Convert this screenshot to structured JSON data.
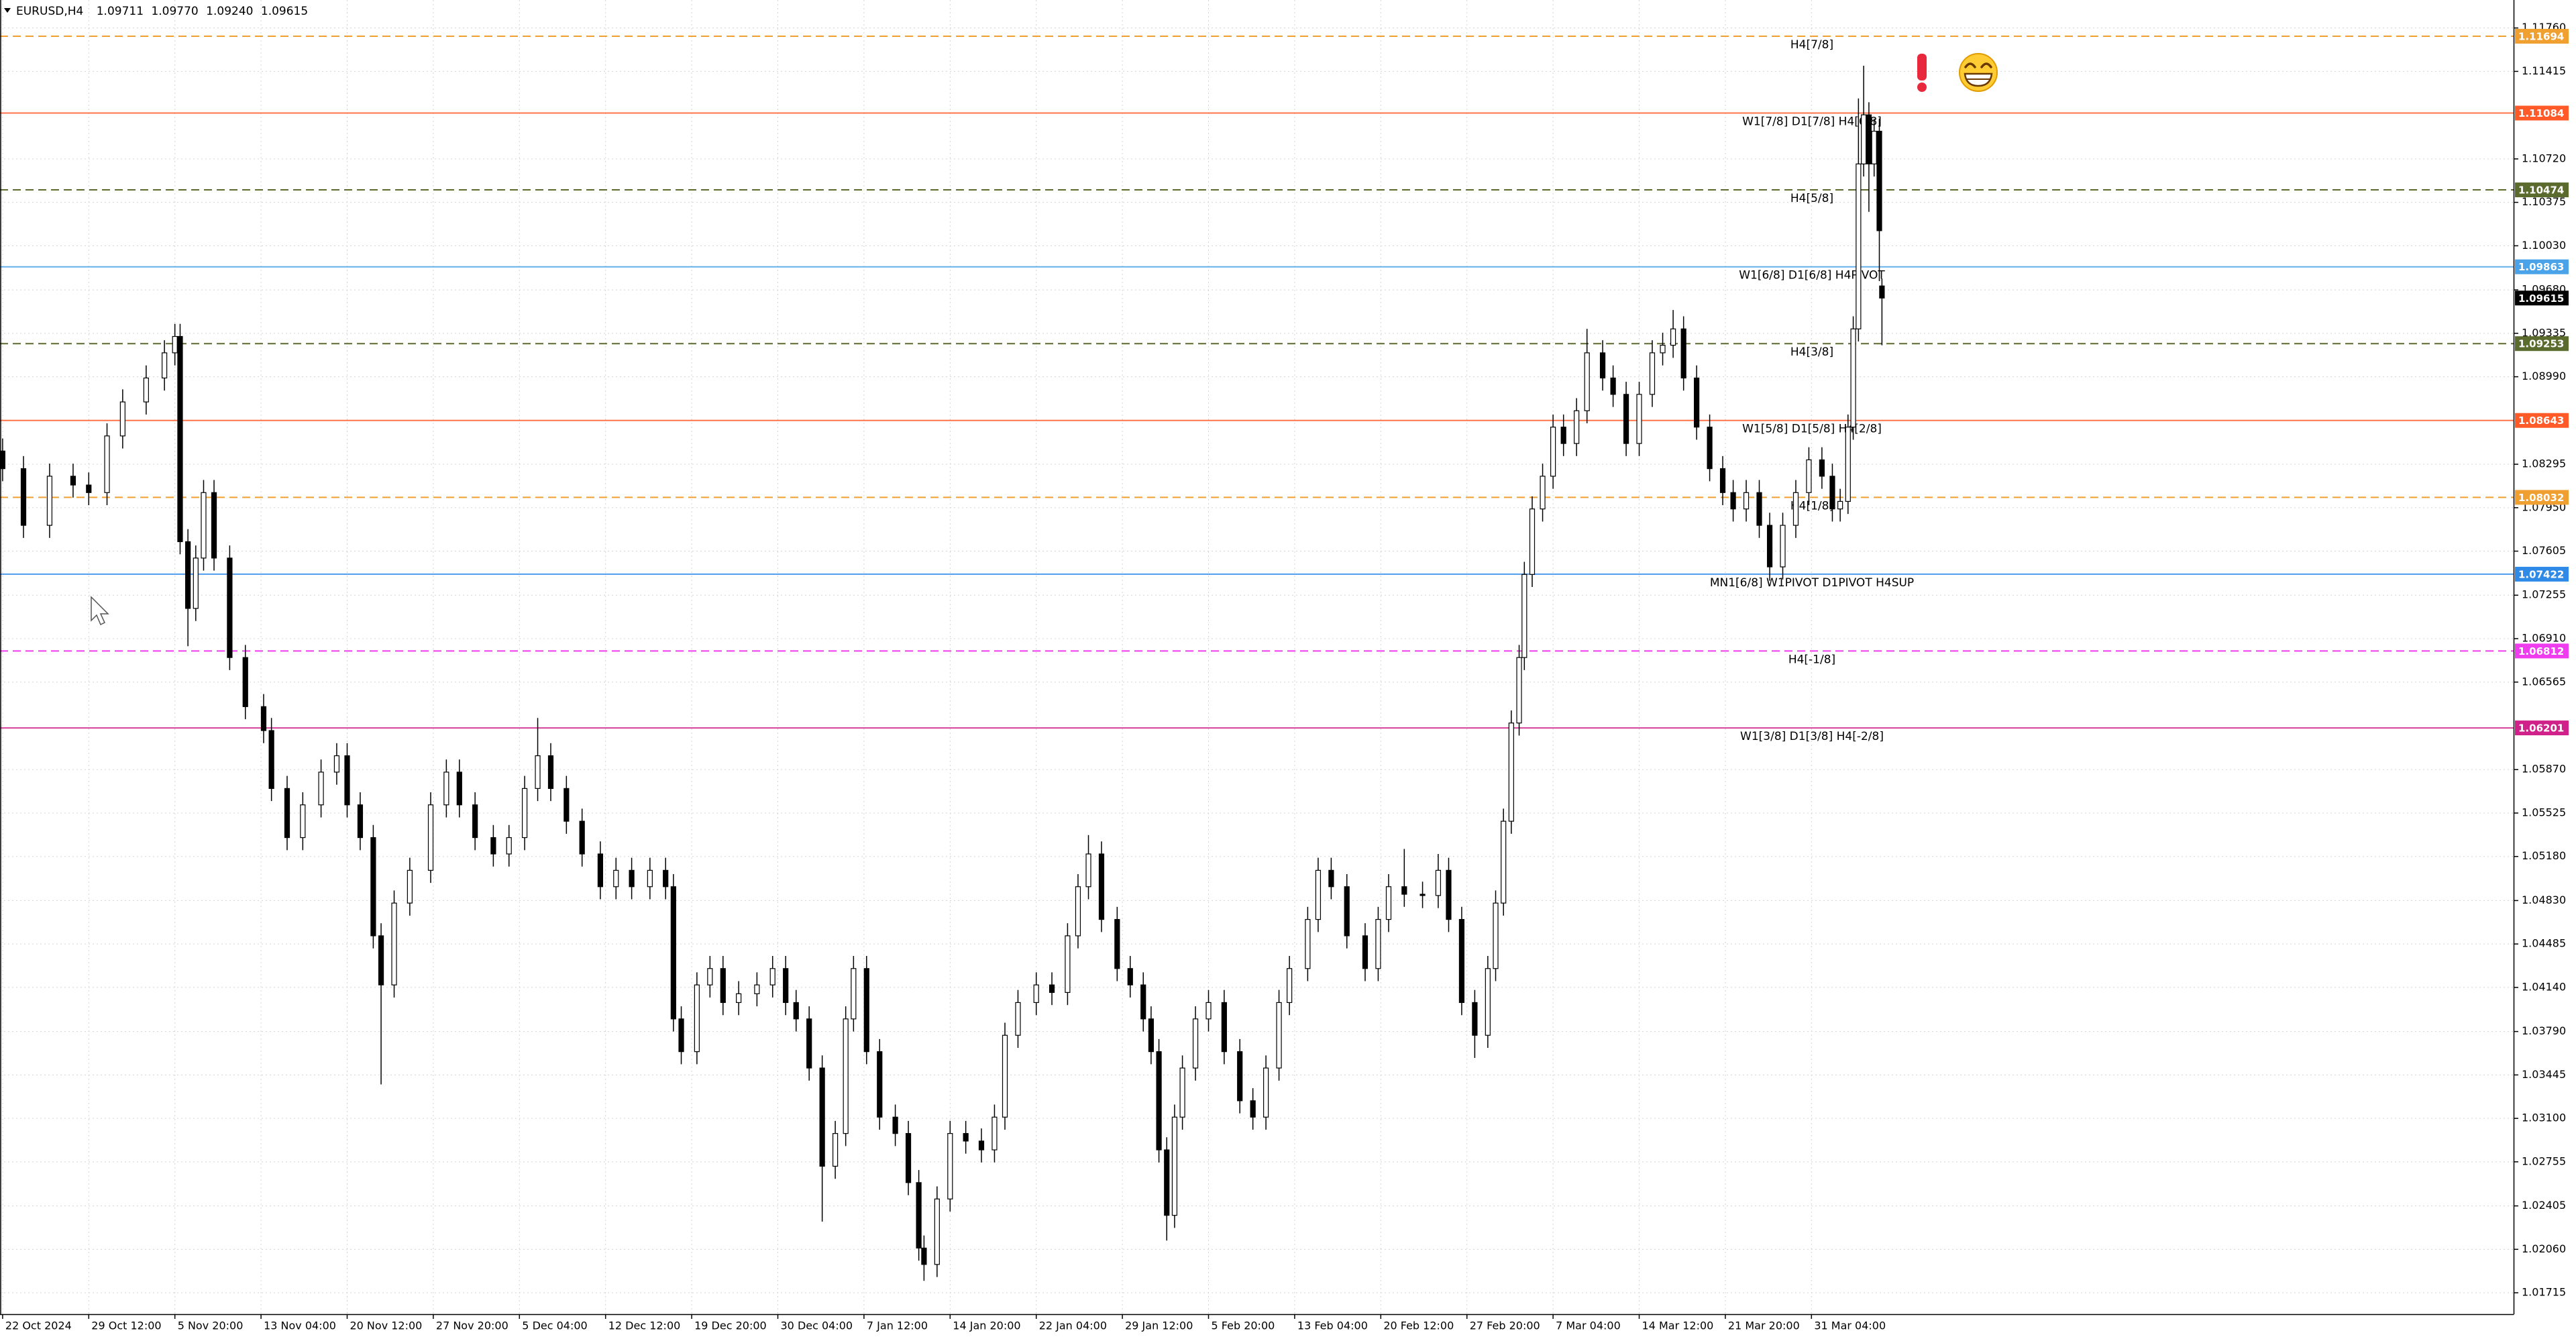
{
  "chart_data": {
    "type": "candlestick",
    "symbol": "EURUSD,H4",
    "last_bar_labels": [
      "1.09711",
      "1.09770",
      "1.09240",
      "1.09615"
    ],
    "xlim": [
      -1,
      962
    ],
    "ylim": [
      1.01545,
      1.11982
    ],
    "grid": true,
    "up_color": "#ffffff",
    "down_color": "#000000",
    "xticks": [
      {
        "value": 0,
        "label": "22 Oct 2024"
      },
      {
        "value": 33,
        "label": "29 Oct 12:00"
      },
      {
        "value": 66,
        "label": "5 Nov 20:00"
      },
      {
        "value": 99,
        "label": "13 Nov 04:00"
      },
      {
        "value": 132,
        "label": "20 Nov 12:00"
      },
      {
        "value": 165,
        "label": "27 Nov 20:00"
      },
      {
        "value": 198,
        "label": "5 Dec 04:00"
      },
      {
        "value": 231,
        "label": "12 Dec 12:00"
      },
      {
        "value": 264,
        "label": "19 Dec 20:00"
      },
      {
        "value": 297,
        "label": "30 Dec 04:00"
      },
      {
        "value": 330,
        "label": "7 Jan 12:00"
      },
      {
        "value": 363,
        "label": "14 Jan 20:00"
      },
      {
        "value": 396,
        "label": "22 Jan 04:00"
      },
      {
        "value": 429,
        "label": "29 Jan 12:00"
      },
      {
        "value": 462,
        "label": "5 Feb 20:00"
      },
      {
        "value": 495,
        "label": "13 Feb 04:00"
      },
      {
        "value": 528,
        "label": "20 Feb 12:00"
      },
      {
        "value": 561,
        "label": "27 Feb 20:00"
      },
      {
        "value": 594,
        "label": "7 Mar 04:00"
      },
      {
        "value": 627,
        "label": "14 Mar 12:00"
      },
      {
        "value": 660,
        "label": "21 Mar 20:00"
      },
      {
        "value": 693,
        "label": "31 Mar 04:00"
      }
    ],
    "yticks": [
      {
        "value": 1.1176,
        "label": "1.11760"
      },
      1.11415,
      {
        "value": 1.1072,
        "label": "1.10720"
      },
      1.10375,
      {
        "value": 1.1003,
        "label": "1.10030"
      },
      {
        "value": 1.0968,
        "label": "1.09680"
      },
      1.09335,
      {
        "value": 1.0899,
        "label": "1.08990"
      },
      1.08295,
      {
        "value": 1.0795,
        "label": "1.07950"
      },
      1.07605,
      1.07255,
      {
        "value": 1.0691,
        "label": "1.06910"
      },
      1.06565,
      {
        "value": 1.0587,
        "label": "1.05870"
      },
      1.05525,
      {
        "value": 1.0518,
        "label": "1.05180"
      },
      {
        "value": 1.0483,
        "label": "1.04830"
      },
      1.04485,
      {
        "value": 1.0414,
        "label": "1.04140"
      },
      {
        "value": 1.0379,
        "label": "1.03790"
      },
      1.03445,
      {
        "value": 1.031,
        "label": "1.03100"
      },
      1.02755,
      1.02405,
      {
        "value": 1.0206,
        "label": "1.02060"
      },
      1.01715
    ],
    "levels": [
      {
        "name": "H4[7/8]",
        "value": 1.11694,
        "color": "#f0a030",
        "dashed": true
      },
      {
        "name": "W1[7/8] D1[7/8] H4[6/8]",
        "value": 1.11084,
        "color": "#ff5a28",
        "dashed": false
      },
      {
        "name": "H4[5/8]",
        "value": 1.10474,
        "color": "#5b6b2e",
        "dashed": true
      },
      {
        "name": "W1[6/8] D1[6/8] H4PIVOT",
        "value": 1.09863,
        "color": "#4aa3e8",
        "dashed": false
      },
      {
        "name": "H4[3/8]",
        "value": 1.09253,
        "color": "#5b6b2e",
        "dashed": true
      },
      {
        "name": "W1[5/8] D1[5/8] H4[2/8]",
        "value": 1.08643,
        "color": "#ff5a28",
        "dashed": false
      },
      {
        "name": "H4[1/8]",
        "value": 1.08032,
        "color": "#f0a030",
        "dashed": true
      },
      {
        "name": "MN1[6/8] W1PIVOT D1PIVOT H4SUP",
        "value": 1.07422,
        "color": "#2e8ae6",
        "dashed": false
      },
      {
        "name": "H4[-1/8]",
        "value": 1.06812,
        "color": "#ee3cee",
        "dashed": true
      },
      {
        "name": "W1[3/8] D1[3/8] H4[-2/8]",
        "value": 1.06201,
        "color": "#d0208a",
        "dashed": false
      }
    ],
    "current_price_color": "#000000",
    "x": [
      0,
      8,
      18,
      27,
      33,
      40,
      46,
      55,
      62,
      66,
      68,
      71,
      74,
      77,
      81,
      87,
      93,
      100,
      103,
      109,
      115,
      122,
      128,
      132,
      137,
      142,
      145,
      150,
      156,
      164,
      170,
      175,
      181,
      188,
      194,
      200,
      205,
      210,
      216,
      222,
      229,
      235,
      241,
      248,
      254,
      257,
      260,
      266,
      271,
      276,
      282,
      289,
      295,
      300,
      304,
      309,
      314,
      319,
      323,
      326,
      331,
      336,
      342,
      347,
      351,
      353,
      358,
      363,
      369,
      375,
      380,
      384,
      389,
      396,
      402,
      408,
      412,
      416,
      421,
      427,
      432,
      437,
      440,
      443,
      446,
      449,
      452,
      457,
      462,
      468,
      474,
      479,
      484,
      489,
      493,
      500,
      504,
      509,
      515,
      522,
      527,
      531,
      537,
      544,
      550,
      554,
      559,
      564,
      569,
      572,
      575,
      578,
      581,
      583,
      586,
      590,
      594,
      598,
      603,
      607,
      613,
      617,
      622,
      627,
      632,
      636,
      640,
      644,
      649,
      654,
      659,
      663,
      668,
      673,
      677,
      682,
      687,
      692,
      697,
      701,
      704,
      707,
      709,
      711,
      713,
      715,
      717,
      719,
      720
    ],
    "open": [
      1.084,
      1.0826,
      1.0781,
      1.082,
      1.0813,
      1.0807,
      1.0852,
      1.0879,
      1.0898,
      1.0918,
      1.0931,
      1.0768,
      1.0715,
      1.0755,
      1.0807,
      1.0755,
      1.0676,
      1.0637,
      1.0618,
      1.0572,
      1.0533,
      1.0559,
      1.0585,
      1.0598,
      1.0559,
      1.0533,
      1.0455,
      1.0416,
      1.0481,
      1.0507,
      1.0559,
      1.0585,
      1.0559,
      1.0533,
      1.052,
      1.0533,
      1.0572,
      1.0598,
      1.0572,
      1.0546,
      1.052,
      1.0494,
      1.0507,
      1.0494,
      1.0507,
      1.0494,
      1.0389,
      1.0363,
      1.0416,
      1.0429,
      1.0402,
      1.0409,
      1.0416,
      1.0429,
      1.0402,
      1.0389,
      1.035,
      1.0272,
      1.0298,
      1.0389,
      1.0429,
      1.0363,
      1.0311,
      1.0298,
      1.0259,
      1.0207,
      1.0194,
      1.0246,
      1.0298,
      1.0292,
      1.0285,
      1.0311,
      1.0376,
      1.0402,
      1.0416,
      1.041,
      1.0455,
      1.0494,
      1.052,
      1.0468,
      1.0429,
      1.0416,
      1.0389,
      1.0363,
      1.0285,
      1.0233,
      1.0311,
      1.035,
      1.0389,
      1.0402,
      1.0363,
      1.0324,
      1.0311,
      1.035,
      1.0402,
      1.0429,
      1.0468,
      1.0507,
      1.0494,
      1.0455,
      1.0429,
      1.0468,
      1.0494,
      1.0488,
      1.0487,
      1.0507,
      1.0468,
      1.0402,
      1.0376,
      1.0429,
      1.0481,
      1.0546,
      1.0624,
      1.0676,
      1.0742,
      1.0794,
      1.082,
      1.0859,
      1.0846,
      1.0872,
      1.0918,
      1.0898,
      1.0885,
      1.0846,
      1.0885,
      1.0918,
      1.0924,
      1.0937,
      1.0898,
      1.0859,
      1.0826,
      1.0807,
      1.0794,
      1.0807,
      1.0781,
      1.0748,
      1.0781,
      1.0807,
      1.0833,
      1.082,
      1.0794,
      1.08,
      1.0859,
      1.0937,
      1.1068,
      1.1107,
      1.1068,
      1.1094,
      1.09711
    ],
    "high": [
      1.085,
      1.0836,
      1.083,
      1.083,
      1.0823,
      1.0862,
      1.0889,
      1.0908,
      1.0928,
      1.0941,
      1.0941,
      1.0778,
      1.0765,
      1.0817,
      1.0817,
      1.0765,
      1.0686,
      1.0647,
      1.0628,
      1.0582,
      1.0569,
      1.0595,
      1.0608,
      1.0608,
      1.0569,
      1.0543,
      1.0465,
      1.0491,
      1.0517,
      1.0569,
      1.0595,
      1.0595,
      1.0569,
      1.0543,
      1.0543,
      1.0582,
      1.0628,
      1.0608,
      1.0582,
      1.0556,
      1.053,
      1.0517,
      1.0517,
      1.0517,
      1.0517,
      1.0504,
      1.0399,
      1.0426,
      1.0439,
      1.0439,
      1.0419,
      1.0426,
      1.0439,
      1.0439,
      1.0412,
      1.0399,
      1.036,
      1.0308,
      1.0399,
      1.0439,
      1.0439,
      1.0373,
      1.0321,
      1.0308,
      1.0269,
      1.0217,
      1.0256,
      1.0308,
      1.0308,
      1.0302,
      1.0321,
      1.0386,
      1.0412,
      1.0426,
      1.0426,
      1.0465,
      1.0504,
      1.0535,
      1.053,
      1.0478,
      1.0439,
      1.0426,
      1.0399,
      1.0373,
      1.0295,
      1.0321,
      1.036,
      1.0399,
      1.0412,
      1.0412,
      1.0373,
      1.0334,
      1.036,
      1.0412,
      1.0439,
      1.0478,
      1.0517,
      1.0517,
      1.0504,
      1.0465,
      1.0478,
      1.0504,
      1.0524,
      1.0498,
      1.052,
      1.0517,
      1.0478,
      1.0412,
      1.0439,
      1.0491,
      1.0556,
      1.0634,
      1.0686,
      1.0752,
      1.0804,
      1.083,
      1.0869,
      1.0869,
      1.0882,
      1.0937,
      1.0928,
      1.0908,
      1.0895,
      1.0895,
      1.0928,
      1.0934,
      1.0952,
      1.0947,
      1.0908,
      1.0869,
      1.0836,
      1.0817,
      1.0817,
      1.0817,
      1.0791,
      1.0791,
      1.0817,
      1.0843,
      1.0843,
      1.083,
      1.081,
      1.0869,
      1.0947,
      1.112,
      1.1146,
      1.1117,
      1.1104,
      1.1104,
      1.0977
    ],
    "low": [
      1.0816,
      1.0771,
      1.0771,
      1.0803,
      1.0797,
      1.0797,
      1.0842,
      1.0869,
      1.0888,
      1.0908,
      1.0758,
      1.0685,
      1.0705,
      1.0745,
      1.0745,
      1.0666,
      1.0627,
      1.0608,
      1.0562,
      1.0523,
      1.0523,
      1.0549,
      1.0575,
      1.0549,
      1.0523,
      1.0445,
      1.0337,
      1.0406,
      1.0471,
      1.0497,
      1.0549,
      1.0549,
      1.0523,
      1.051,
      1.051,
      1.0523,
      1.0562,
      1.0562,
      1.0536,
      1.051,
      1.0484,
      1.0484,
      1.0484,
      1.0484,
      1.0484,
      1.0379,
      1.0353,
      1.0353,
      1.0406,
      1.0392,
      1.0392,
      1.0399,
      1.0406,
      1.0392,
      1.0379,
      1.034,
      1.0228,
      1.0262,
      1.0288,
      1.0379,
      1.0353,
      1.0301,
      1.0288,
      1.0249,
      1.0197,
      1.0181,
      1.0184,
      1.0236,
      1.0282,
      1.0275,
      1.0275,
      1.0301,
      1.0366,
      1.0392,
      1.04,
      1.04,
      1.0445,
      1.0484,
      1.0458,
      1.0419,
      1.0406,
      1.0379,
      1.0353,
      1.0275,
      1.0213,
      1.0223,
      1.0301,
      1.034,
      1.0379,
      1.0353,
      1.0314,
      1.0301,
      1.0301,
      1.034,
      1.0392,
      1.0419,
      1.0458,
      1.0484,
      1.0445,
      1.0419,
      1.0419,
      1.0458,
      1.0478,
      1.0477,
      1.0477,
      1.0458,
      1.0392,
      1.0358,
      1.0366,
      1.0419,
      1.0471,
      1.0536,
      1.0614,
      1.0666,
      1.0732,
      1.0784,
      1.081,
      1.0836,
      1.0836,
      1.0862,
      1.0888,
      1.0875,
      1.0836,
      1.0836,
      1.0875,
      1.0908,
      1.0914,
      1.0888,
      1.0849,
      1.0816,
      1.0797,
      1.0784,
      1.0784,
      1.0771,
      1.0737,
      1.0738,
      1.0771,
      1.0797,
      1.081,
      1.0784,
      1.0784,
      1.079,
      1.0849,
      1.0927,
      1.1058,
      1.103,
      1.1058,
      1.0975,
      1.0924
    ],
    "close": [
      1.0826,
      1.0781,
      1.082,
      1.0813,
      1.0807,
      1.0852,
      1.0879,
      1.0898,
      1.0918,
      1.0931,
      1.0768,
      1.0715,
      1.0755,
      1.0807,
      1.0755,
      1.0676,
      1.0637,
      1.0618,
      1.0572,
      1.0533,
      1.0559,
      1.0585,
      1.0598,
      1.0559,
      1.0533,
      1.0455,
      1.0416,
      1.0481,
      1.0507,
      1.0559,
      1.0585,
      1.0559,
      1.0533,
      1.052,
      1.0533,
      1.0572,
      1.0598,
      1.0572,
      1.0546,
      1.052,
      1.0494,
      1.0507,
      1.0494,
      1.0507,
      1.0494,
      1.0389,
      1.0363,
      1.0416,
      1.0429,
      1.0402,
      1.0409,
      1.0416,
      1.0429,
      1.0402,
      1.0389,
      1.035,
      1.0272,
      1.0298,
      1.0389,
      1.0429,
      1.0363,
      1.0311,
      1.0298,
      1.0259,
      1.0207,
      1.0194,
      1.0246,
      1.0298,
      1.0292,
      1.0285,
      1.0311,
      1.0376,
      1.0402,
      1.0416,
      1.041,
      1.0455,
      1.0494,
      1.052,
      1.0468,
      1.0429,
      1.0416,
      1.0389,
      1.0363,
      1.0285,
      1.0233,
      1.0311,
      1.035,
      1.0389,
      1.0402,
      1.0363,
      1.0324,
      1.0311,
      1.035,
      1.0402,
      1.0429,
      1.0468,
      1.0507,
      1.0494,
      1.0455,
      1.0429,
      1.0468,
      1.0494,
      1.0488,
      1.0487,
      1.0507,
      1.0468,
      1.0402,
      1.0376,
      1.0429,
      1.0481,
      1.0546,
      1.0624,
      1.0676,
      1.0742,
      1.0794,
      1.082,
      1.0859,
      1.0846,
      1.0872,
      1.0918,
      1.0898,
      1.0885,
      1.0846,
      1.0885,
      1.0918,
      1.0924,
      1.0937,
      1.0898,
      1.0859,
      1.0826,
      1.0807,
      1.0794,
      1.0807,
      1.0781,
      1.0748,
      1.0781,
      1.0807,
      1.0833,
      1.082,
      1.0794,
      1.08,
      1.0859,
      1.0937,
      1.1068,
      1.1107,
      1.1068,
      1.1094,
      1.1015,
      1.09615
    ]
  }
}
